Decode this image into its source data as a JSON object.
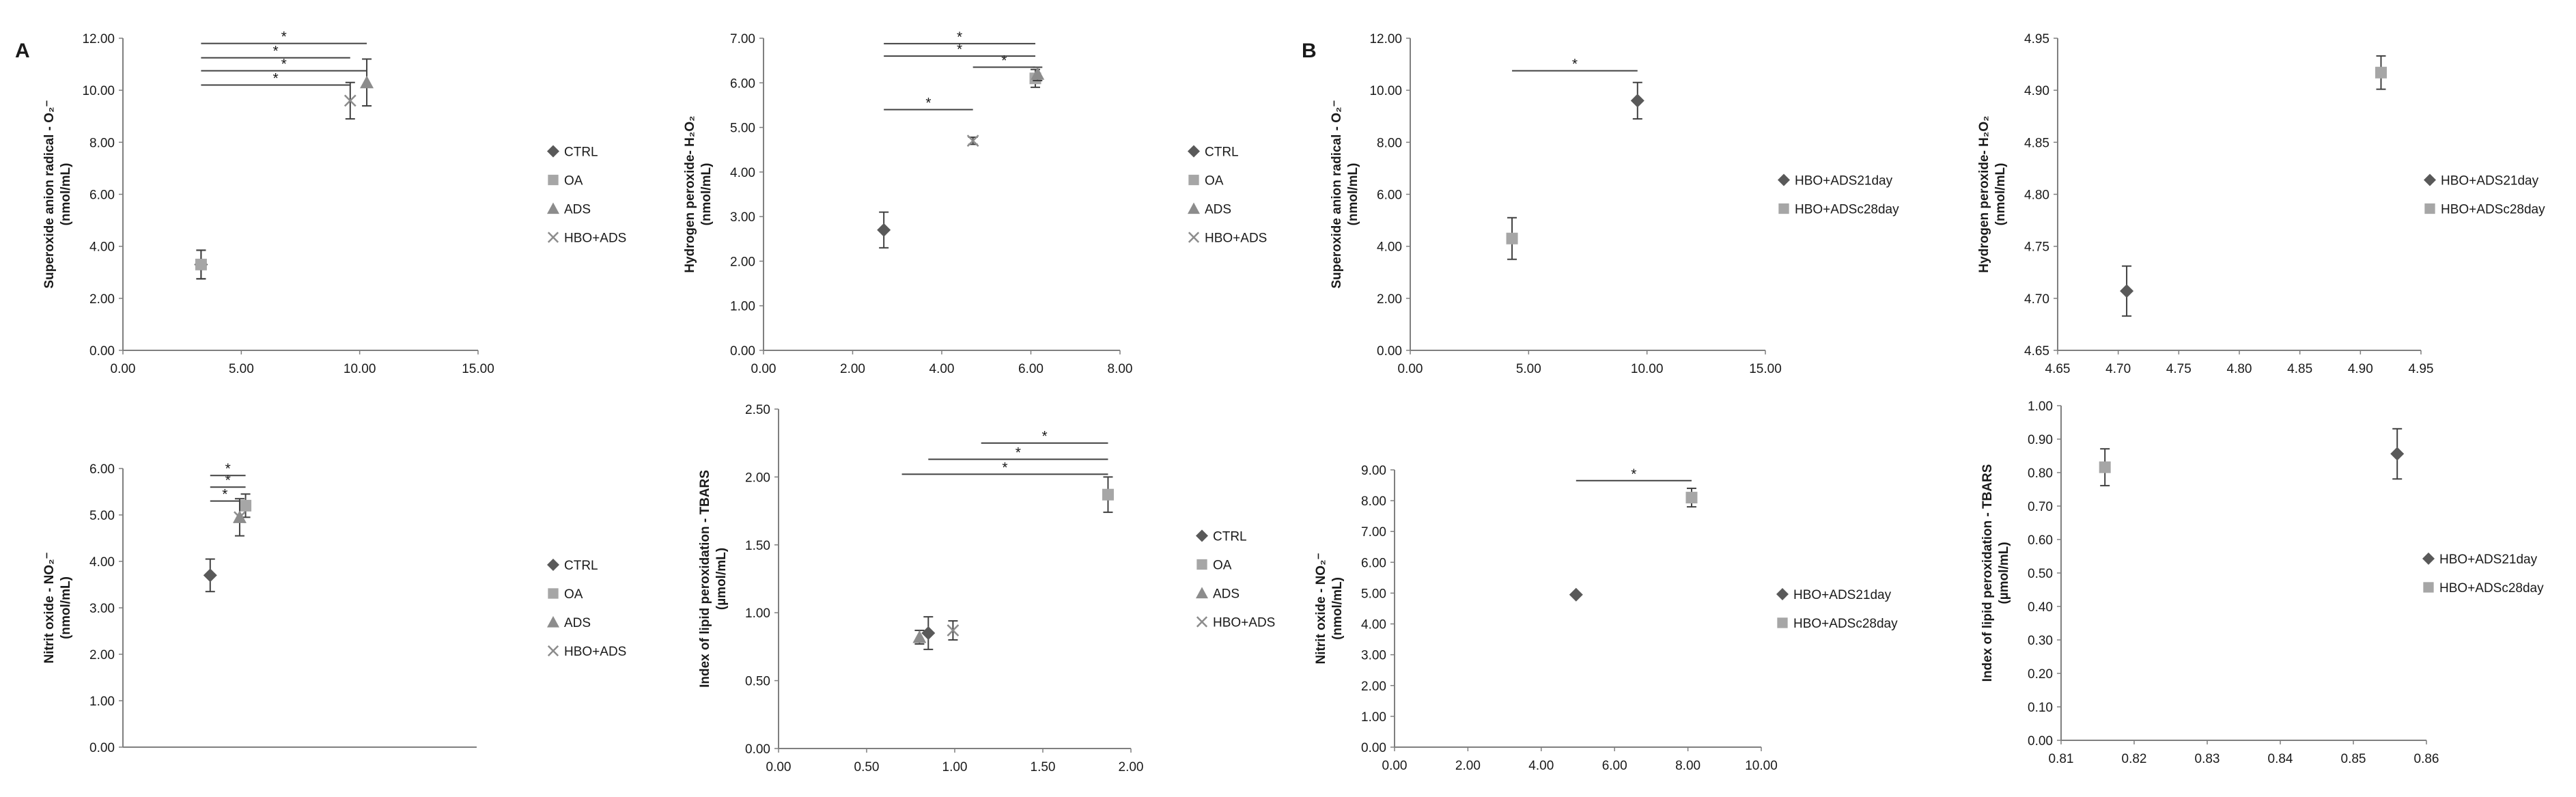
{
  "figure": {
    "panel_labels": [
      "A",
      "B"
    ]
  },
  "colors": {
    "diamond": "#595959",
    "square": "#a6a6a6",
    "triangle": "#8c8c8c",
    "cross": "#8c8c8c",
    "axis": "#7f7f7f",
    "bar": "#404040"
  },
  "chart_data": [
    {
      "id": "A1",
      "type": "scatter",
      "ylabel": [
        "Superoxide anion radical - O₂⁻",
        "(nmol/mL)"
      ],
      "xlim": [
        0,
        15
      ],
      "xticks": [
        "0.00",
        "5.00",
        "10.00",
        "15.00"
      ],
      "ylim": [
        0,
        12
      ],
      "yticks": [
        "0.00",
        "2.00",
        "4.00",
        "6.00",
        "8.00",
        "10.00",
        "12.00"
      ],
      "series": [
        {
          "name": "CTRL",
          "marker": "diamond",
          "x": 3.3,
          "y": 3.3,
          "err": 0.55
        },
        {
          "name": "OA",
          "marker": "square",
          "x": 3.3,
          "y": 3.3,
          "err": 0.55
        },
        {
          "name": "ADS",
          "marker": "triangle",
          "x": 10.3,
          "y": 10.3,
          "err": 0.9
        },
        {
          "name": "HBO+ADS",
          "marker": "cross",
          "x": 9.6,
          "y": 9.6,
          "err": 0.7
        }
      ],
      "significance": [
        {
          "x1": 3.3,
          "x2": 10.3,
          "y": 11.8,
          "label": "*"
        },
        {
          "x1": 3.3,
          "x2": 9.6,
          "y": 11.25,
          "label": "*"
        },
        {
          "x1": 3.3,
          "x2": 10.3,
          "y": 10.75,
          "label": "*"
        },
        {
          "x1": 3.3,
          "x2": 9.6,
          "y": 10.2,
          "label": "*"
        }
      ]
    },
    {
      "id": "A2",
      "type": "scatter",
      "ylabel": [
        "Hydrogen peroxide- H₂O₂",
        "(nmol/mL)"
      ],
      "xlim": [
        0,
        8
      ],
      "xticks": [
        "0.00",
        "2.00",
        "4.00",
        "6.00",
        "8.00"
      ],
      "ylim": [
        0,
        7
      ],
      "yticks": [
        "0.00",
        "1.00",
        "2.00",
        "3.00",
        "4.00",
        "5.00",
        "6.00",
        "7.00"
      ],
      "series": [
        {
          "name": "CTRL",
          "marker": "diamond",
          "x": 2.7,
          "y": 2.7,
          "err": 0.4
        },
        {
          "name": "OA",
          "marker": "square",
          "x": 6.1,
          "y": 6.1,
          "err": 0.2
        },
        {
          "name": "ADS",
          "marker": "triangle",
          "x": 6.15,
          "y": 6.2,
          "err": 0.15
        },
        {
          "name": "HBO+ADS",
          "marker": "cross",
          "x": 4.7,
          "y": 4.7,
          "err": 0.08
        }
      ],
      "significance": [
        {
          "x1": 2.7,
          "x2": 6.1,
          "y": 6.88,
          "label": "*"
        },
        {
          "x1": 2.7,
          "x2": 6.1,
          "y": 6.6,
          "label": "*"
        },
        {
          "x1": 4.7,
          "x2": 6.1,
          "y": 6.35,
          "label": "*"
        },
        {
          "x1": 2.7,
          "x2": 4.7,
          "y": 5.4,
          "label": "*"
        }
      ]
    },
    {
      "id": "A3",
      "type": "scatter",
      "ylabel": [
        "Nitrit oxide - NO₂⁻",
        "(nmol/mL)"
      ],
      "xlim": [
        0,
        15
      ],
      "xticks": [],
      "ylim": [
        0,
        6
      ],
      "yticks": [
        "0.00",
        "1.00",
        "2.00",
        "3.00",
        "4.00",
        "5.00",
        "6.00"
      ],
      "series": [
        {
          "name": "CTRL",
          "marker": "diamond",
          "x": 3.7,
          "y": 3.7,
          "err": 0.35
        },
        {
          "name": "OA",
          "marker": "square",
          "x": 5.2,
          "y": 5.2,
          "err": 0.25
        },
        {
          "name": "ADS",
          "marker": "triangle",
          "x": 4.95,
          "y": 4.95,
          "err": 0.4
        },
        {
          "name": "HBO+ADS",
          "marker": "cross",
          "x": 4.95,
          "y": 4.95,
          "err": 0.0
        }
      ],
      "significance": [
        {
          "x1": 3.7,
          "x2": 5.2,
          "y": 5.85,
          "label": "*"
        },
        {
          "x1": 3.7,
          "x2": 5.2,
          "y": 5.6,
          "label": "*"
        },
        {
          "x1": 3.7,
          "x2": 4.95,
          "y": 5.3,
          "label": "*"
        }
      ]
    },
    {
      "id": "A4",
      "type": "scatter",
      "ylabel": [
        "Index of lipid peroxidation - TBARS",
        "(µmol/mL)"
      ],
      "xlim": [
        0,
        2
      ],
      "xticks": [
        "0.00",
        "0.50",
        "1.00",
        "1.50",
        "2.00"
      ],
      "ylim": [
        0,
        2.5
      ],
      "yticks": [
        "0.00",
        "0.50",
        "1.00",
        "1.50",
        "2.00",
        "2.50"
      ],
      "series": [
        {
          "name": "CTRL",
          "marker": "diamond",
          "x": 0.85,
          "y": 0.85,
          "err": 0.12
        },
        {
          "name": "OA",
          "marker": "square",
          "x": 1.87,
          "y": 1.87,
          "err": 0.13
        },
        {
          "name": "ADS",
          "marker": "triangle",
          "x": 0.8,
          "y": 0.82,
          "err": 0.05
        },
        {
          "name": "HBO+ADS",
          "marker": "cross",
          "x": 0.99,
          "y": 0.87,
          "err": 0.07
        }
      ],
      "significance": [
        {
          "x1": 1.15,
          "x2": 1.87,
          "y": 2.25,
          "label": "*"
        },
        {
          "x1": 0.85,
          "x2": 1.87,
          "y": 2.13,
          "label": "*"
        },
        {
          "x1": 0.7,
          "x2": 1.87,
          "y": 2.02,
          "label": "*"
        }
      ]
    },
    {
      "id": "B1",
      "type": "scatter",
      "ylabel": [
        "Superoxide anion radical - O₂⁻",
        "(nmol/mL)"
      ],
      "xlim": [
        0,
        15
      ],
      "xticks": [
        "0.00",
        "5.00",
        "10.00",
        "15.00"
      ],
      "ylim": [
        0,
        12
      ],
      "yticks": [
        "0.00",
        "2.00",
        "4.00",
        "6.00",
        "8.00",
        "10.00",
        "12.00"
      ],
      "series": [
        {
          "name": "HBO+ADS21day",
          "marker": "diamond",
          "x": 9.6,
          "y": 9.6,
          "err": 0.7
        },
        {
          "name": "HBO+ADSc28day",
          "marker": "square",
          "x": 4.3,
          "y": 4.3,
          "err": 0.8
        }
      ],
      "significance": [
        {
          "x1": 4.3,
          "x2": 9.6,
          "y": 10.75,
          "label": "*"
        }
      ]
    },
    {
      "id": "B2",
      "type": "scatter",
      "ylabel": [
        "Hydrogen peroxide- H₂O₂",
        "(nmol/mL)"
      ],
      "xlim": [
        4.65,
        4.95
      ],
      "xticks": [
        "4.65",
        "4.70",
        "4.75",
        "4.80",
        "4.85",
        "4.90",
        "4.95"
      ],
      "ylim": [
        4.65,
        4.95
      ],
      "yticks": [
        "4.65",
        "4.70",
        "4.75",
        "4.80",
        "4.85",
        "4.90",
        "4.95"
      ],
      "series": [
        {
          "name": "HBO+ADS21day",
          "marker": "diamond",
          "x": 4.707,
          "y": 4.707,
          "err": 0.024
        },
        {
          "name": "HBO+ADSc28day",
          "marker": "square",
          "x": 4.917,
          "y": 4.917,
          "err": 0.016
        }
      ],
      "significance": []
    },
    {
      "id": "B3",
      "type": "scatter",
      "ylabel": [
        "Nitrit oxide - NO₂⁻",
        "(nmol/mL)"
      ],
      "xlim": [
        0,
        10
      ],
      "xticks": [
        "0.00",
        "2.00",
        "4.00",
        "6.00",
        "8.00",
        "10.00"
      ],
      "ylim": [
        0,
        9
      ],
      "yticks": [
        "0.00",
        "1.00",
        "2.00",
        "3.00",
        "4.00",
        "5.00",
        "6.00",
        "7.00",
        "8.00",
        "9.00"
      ],
      "series": [
        {
          "name": "HBO+ADS21day",
          "marker": "diamond",
          "x": 4.95,
          "y": 4.95,
          "err": 0.0
        },
        {
          "name": "HBO+ADSc28day",
          "marker": "square",
          "x": 8.1,
          "y": 8.1,
          "err": 0.3
        }
      ],
      "significance": [
        {
          "x1": 4.95,
          "x2": 8.1,
          "y": 8.65,
          "label": "*"
        }
      ]
    },
    {
      "id": "B4",
      "type": "scatter",
      "ylabel": [
        "Index of lipid peroxidation - TBARS",
        "(µmol/mL)"
      ],
      "xlim": [
        0.81,
        0.86
      ],
      "xticks": [
        "0.81",
        "0.82",
        "0.83",
        "0.84",
        "0.85",
        "0.86"
      ],
      "ylim": [
        0,
        1.0
      ],
      "yticks": [
        "0.00",
        "0.10",
        "0.20",
        "0.30",
        "0.40",
        "0.50",
        "0.60",
        "0.70",
        "0.80",
        "0.90",
        "1.00"
      ],
      "series": [
        {
          "name": "HBO+ADS21day",
          "marker": "diamond",
          "x": 0.856,
          "y": 0.856,
          "err": 0.075
        },
        {
          "name": "HBO+ADSc28day",
          "marker": "square",
          "x": 0.816,
          "y": 0.816,
          "err": 0.055
        }
      ],
      "significance": []
    }
  ]
}
